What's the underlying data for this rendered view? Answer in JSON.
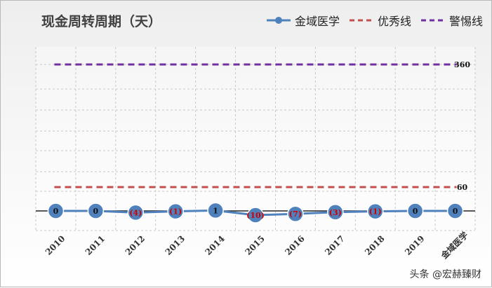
{
  "title": "现金周转周期（天）",
  "legend": {
    "series": "金域医学",
    "excellent": "优秀线",
    "warning": "警惕线"
  },
  "watermark": "头条 @宏赫臻财",
  "colors": {
    "series": "#4f81bd",
    "excellent": "#c0504d",
    "warning": "#7030a0",
    "negative_label": "#cc0000",
    "positive_label": "#111111"
  },
  "chart_data": {
    "type": "line",
    "categories": [
      "2010",
      "2011",
      "2012",
      "2013",
      "2014",
      "2015",
      "2016",
      "2017",
      "2018",
      "2019",
      "金域医学"
    ],
    "series": [
      {
        "name": "金域医学",
        "values": [
          0,
          0,
          -4,
          -1,
          1,
          -10,
          -7,
          -3,
          -1,
          0,
          0
        ]
      }
    ],
    "data_labels": [
      "0",
      "0",
      "(4)",
      "(1)",
      "1",
      "(10)",
      "(7)",
      "(3)",
      "(1)",
      "0",
      "0"
    ],
    "reference_lines": [
      {
        "name": "优秀线",
        "value": 60,
        "label": "60"
      },
      {
        "name": "警惕线",
        "value": 360,
        "label": "360"
      }
    ],
    "grid": true,
    "legend_position": "top-right"
  }
}
